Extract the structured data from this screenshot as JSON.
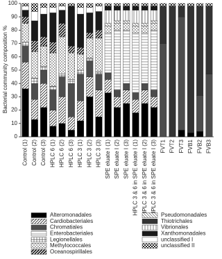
{
  "chart_data": {
    "type": "stacked_bar",
    "y_label": "Bacterial community composition %",
    "ylim": [
      0,
      100
    ],
    "yticks": [
      0,
      10,
      20,
      30,
      40,
      50,
      60,
      70,
      80,
      90,
      100
    ],
    "categories": [
      "Control (1)",
      "Control (2)",
      "Control (3)",
      "HPLC 6 (1)",
      "HPLC 6 (2)",
      "HPLC 6 (3)",
      "HPLC 3 (1)",
      "HPLC 3 (2)",
      "HPLC 3 (3)",
      "SPE eluate I (1)",
      "SPE eluate I (2)",
      "SPE eluate I (3)",
      "HPLC 3 & 6 in SPE eluate I (1)",
      "HPLC 3 & 6 in SPE eluate I (2)",
      "HPLC 3 & 6 in SPE eluate I (3)",
      "FVT1",
      "FVT2",
      "FVT3",
      "FVB1",
      "FVB2",
      "FVB3"
    ],
    "series": [
      {
        "name": "Alteromonadales",
        "color": "#000000",
        "pattern": "solid",
        "values": [
          36,
          13,
          22,
          8,
          10,
          5,
          12,
          30,
          15,
          33,
          22,
          25,
          18,
          25,
          22,
          0,
          0,
          5,
          3,
          4,
          0
        ]
      },
      {
        "name": "Cardiobacteriales",
        "color": "#222222",
        "pattern": "diag",
        "values": [
          20,
          15,
          18,
          12,
          20,
          10,
          15,
          15,
          20,
          10,
          8,
          10,
          10,
          10,
          8,
          0,
          0,
          0,
          0,
          0,
          0
        ]
      },
      {
        "name": "Chromatiales",
        "color": "#4d4d4d",
        "pattern": "solid",
        "values": [
          12,
          12,
          10,
          15,
          15,
          25,
          20,
          12,
          12,
          5,
          5,
          5,
          5,
          5,
          5,
          70,
          0,
          85,
          0,
          27,
          47
        ]
      },
      {
        "name": "Enterobacteriales",
        "color": "#555555",
        "pattern": "hlines",
        "values": [
          0,
          0,
          0,
          0,
          0,
          0,
          0,
          0,
          0,
          30,
          45,
          40,
          45,
          38,
          45,
          0,
          0,
          0,
          0,
          0,
          0
        ]
      },
      {
        "name": "Legionellales",
        "color": "#333333",
        "pattern": "grid",
        "values": [
          3,
          4,
          3,
          3,
          2,
          3,
          3,
          2,
          2,
          0,
          0,
          0,
          0,
          0,
          0,
          0,
          0,
          0,
          0,
          0,
          0
        ]
      },
      {
        "name": "Methylococcales",
        "color": "#333333",
        "pattern": "dots",
        "values": [
          14,
          20,
          15,
          25,
          28,
          20,
          12,
          15,
          25,
          5,
          5,
          5,
          5,
          5,
          5,
          0,
          0,
          0,
          0,
          0,
          0
        ]
      },
      {
        "name": "Oceanospirillales",
        "color": "#111111",
        "pattern": "diagbold",
        "values": [
          5,
          8,
          7,
          8,
          10,
          5,
          5,
          4,
          6,
          0,
          0,
          0,
          0,
          0,
          0,
          0,
          0,
          0,
          0,
          0,
          0
        ]
      },
      {
        "name": "Pseudomonadales",
        "color": "#444444",
        "pattern": "antidiag",
        "values": [
          0,
          0,
          0,
          0,
          0,
          0,
          0,
          0,
          0,
          2,
          2,
          2,
          2,
          2,
          2,
          0,
          0,
          0,
          0,
          0,
          0
        ]
      },
      {
        "name": "Thiotrichales",
        "color": "#333333",
        "pattern": "solid",
        "values": [
          0,
          0,
          0,
          0,
          0,
          0,
          0,
          0,
          0,
          0,
          0,
          0,
          0,
          0,
          0,
          28,
          98,
          8,
          95,
          67,
          51
        ]
      },
      {
        "name": "Vibrionales",
        "color": "#666666",
        "pattern": "vlines",
        "values": [
          0,
          0,
          0,
          0,
          0,
          0,
          0,
          0,
          0,
          10,
          8,
          8,
          10,
          10,
          8,
          0,
          0,
          0,
          0,
          0,
          0
        ]
      },
      {
        "name": "Xanthomonadales",
        "color": "#1a1a1a",
        "pattern": "solid",
        "values": [
          5,
          15,
          17,
          22,
          10,
          30,
          25,
          15,
          14,
          3,
          3,
          3,
          3,
          3,
          3,
          0,
          0,
          0,
          0,
          0,
          0
        ]
      },
      {
        "name": "unclassified I",
        "color": "#ffffff",
        "pattern": "solid",
        "values": [
          3,
          7,
          5,
          4,
          3,
          0,
          5,
          4,
          4,
          0,
          0,
          0,
          0,
          0,
          0,
          0,
          0,
          0,
          0,
          0,
          0
        ]
      },
      {
        "name": "unclassified II",
        "color": "#222222",
        "pattern": "checker",
        "values": [
          2,
          6,
          3,
          3,
          2,
          2,
          3,
          3,
          2,
          2,
          2,
          2,
          2,
          2,
          2,
          2,
          2,
          2,
          2,
          2,
          2
        ]
      }
    ]
  }
}
